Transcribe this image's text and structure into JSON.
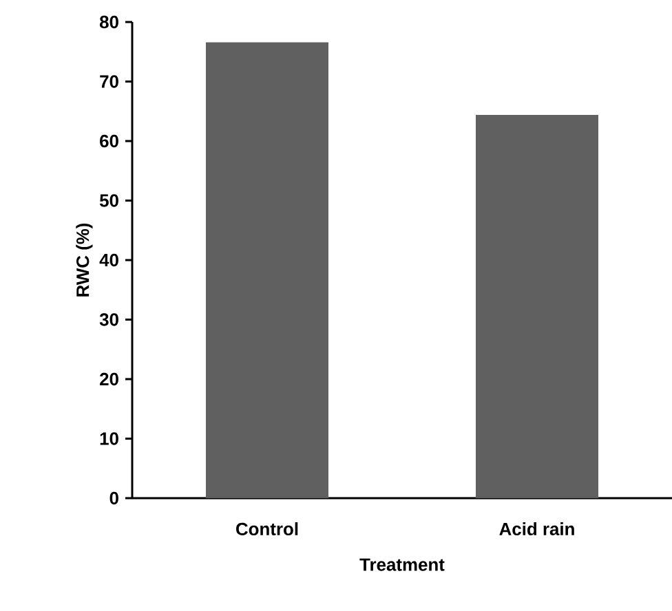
{
  "chart_data": {
    "type": "bar",
    "xlabel": "Treatment",
    "ylabel": "RWC (%)",
    "categories": [
      "Control",
      "Acid rain"
    ],
    "values": [
      76.6,
      64.4
    ],
    "color": "#606060",
    "ylim": [
      0,
      80
    ],
    "yticks": [
      0,
      10,
      20,
      30,
      40,
      50,
      60,
      70,
      80
    ],
    "grid": false
  }
}
